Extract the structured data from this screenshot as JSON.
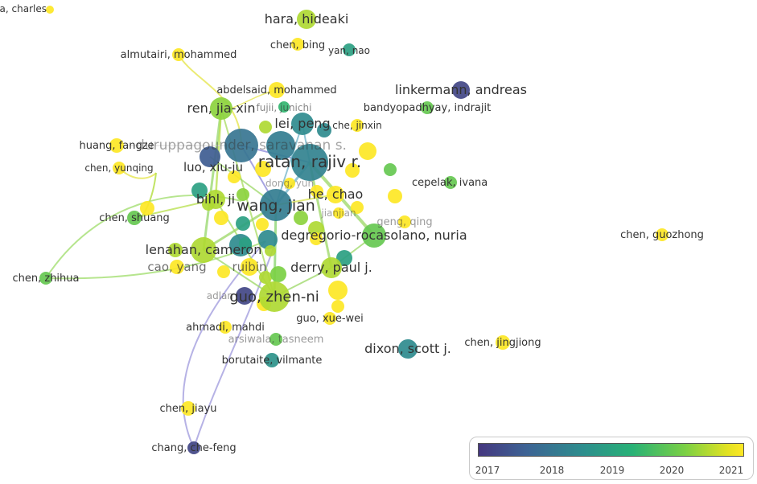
{
  "legend": {
    "ticks": [
      "2017",
      "2018",
      "2019",
      "2020",
      "2021"
    ],
    "colors": [
      "#45377f",
      "#3d6394",
      "#2d8f8d",
      "#28b176",
      "#7bd044",
      "#fde725"
    ]
  },
  "nodes": [
    {
      "id": "giardina",
      "label": "giardina, charles",
      "year": 2021
    },
    {
      "id": "hara",
      "label": "hara, hideaki",
      "year": 2020.5
    },
    {
      "id": "almutairi",
      "label": "almutairi, mohammed",
      "year": 2021
    },
    {
      "id": "chenbing",
      "label": "chen, bing",
      "year": 2021
    },
    {
      "id": "yannao",
      "label": "yan, nao",
      "year": 2019
    },
    {
      "id": "linkermann",
      "label": "linkermann, andreas",
      "year": 2017.2
    },
    {
      "id": "abdelsaid",
      "label": "abdelsaid, mohammed",
      "year": 2021
    },
    {
      "id": "renjiaxin",
      "label": "ren, jia-xin",
      "year": 2020.3
    },
    {
      "id": "fujii",
      "label": "fujii, junichi",
      "year": 2019.5
    },
    {
      "id": "bandyopadhyay",
      "label": "bandyopadhyay, indrajit",
      "year": 2020
    },
    {
      "id": "leipeng",
      "label": "lei, peng",
      "year": 2018.5
    },
    {
      "id": "chejinxin",
      "label": "che, jinxin",
      "year": 2021
    },
    {
      "id": "huangfangze",
      "label": "huang, fangze",
      "year": 2021
    },
    {
      "id": "duruppagounder",
      "label": "duruppagounder, saravanan s.",
      "year": 2018
    },
    {
      "id": "chenyunqing",
      "label": "chen, yunqing",
      "year": 2021
    },
    {
      "id": "ratan",
      "label": "ratan, rajiv r.",
      "year": 2018.3
    },
    {
      "id": "luoxiuju",
      "label": "luo, xiu-ju",
      "year": 2017.5
    },
    {
      "id": "dongyun",
      "label": "dong, yun",
      "year": 2021
    },
    {
      "id": "cepelak",
      "label": "cepelak, ivana",
      "year": 2020
    },
    {
      "id": "bihlji",
      "label": "bihl, ji",
      "year": 2020.5
    },
    {
      "id": "hechao",
      "label": "he, chao",
      "year": 2021
    },
    {
      "id": "chenshuang",
      "label": "chen, shuang",
      "year": 2020
    },
    {
      "id": "wangjian",
      "label": "wang, jian",
      "year": 2018.2
    },
    {
      "id": "jianjian",
      "label": "jianjian",
      "year": 2021
    },
    {
      "id": "gengqing",
      "label": "geng, qing",
      "year": 2021
    },
    {
      "id": "degregorio",
      "label": "degregorio-rocasolano, nuria",
      "year": 2020
    },
    {
      "id": "chenguozhong",
      "label": "chen, guozhong",
      "year": 2021
    },
    {
      "id": "lenahan",
      "label": "lenahan, cameron",
      "year": 2020.5
    },
    {
      "id": "caoyang",
      "label": "cao, yang",
      "year": 2021
    },
    {
      "id": "ruibin",
      "label": "ruibin",
      "year": 2021
    },
    {
      "id": "derry",
      "label": "derry, paul j.",
      "year": 2020.5
    },
    {
      "id": "chenzhihua",
      "label": "chen, zhihua",
      "year": 2020
    },
    {
      "id": "guozhenni",
      "label": "guo, zhen-ni",
      "year": 2020.5
    },
    {
      "id": "adlan",
      "label": "adlan",
      "year": 2017.2
    },
    {
      "id": "guoxuewei",
      "label": "guo, xue-wei",
      "year": 2021
    },
    {
      "id": "ahmadi",
      "label": "ahmadi, mahdi",
      "year": 2021
    },
    {
      "id": "dixon",
      "label": "dixon, scott j.",
      "year": 2018.5
    },
    {
      "id": "chenjingjiong",
      "label": "chen, jingjiong",
      "year": 2021
    },
    {
      "id": "arsiwala",
      "label": "arsiwala, tasneem",
      "year": 2020
    },
    {
      "id": "borutaite",
      "label": "borutaite, vilmante",
      "year": 2018.7
    },
    {
      "id": "chenjiayu",
      "label": "chen, jiayu",
      "year": 2021
    },
    {
      "id": "changchefeng",
      "label": "chang, che-feng",
      "year": 2017.2
    }
  ]
}
